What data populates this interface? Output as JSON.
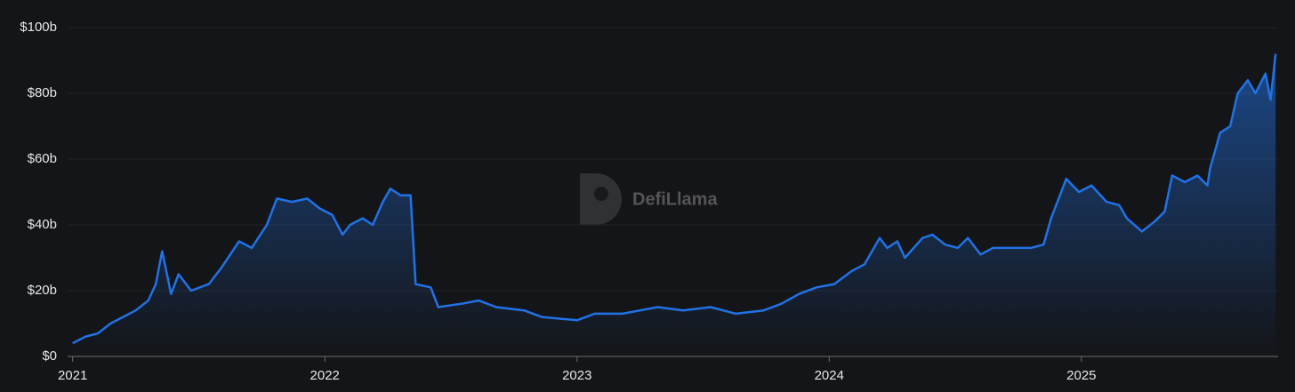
{
  "chart_data": {
    "type": "area",
    "watermark": "DefiLlama",
    "color": "#2172e5",
    "x": [
      2021.0,
      2021.05,
      2021.1,
      2021.15,
      2021.2,
      2021.25,
      2021.3,
      2021.33,
      2021.355,
      2021.39,
      2021.42,
      2021.47,
      2021.54,
      2021.59,
      2021.66,
      2021.71,
      2021.77,
      2021.81,
      2021.87,
      2021.93,
      2021.98,
      2022.03,
      2022.07,
      2022.1,
      2022.15,
      2022.19,
      2022.23,
      2022.26,
      2022.3,
      2022.34,
      2022.36,
      2022.42,
      2022.45,
      2022.54,
      2022.61,
      2022.68,
      2022.79,
      2022.86,
      2023.0,
      2023.07,
      2023.18,
      2023.25,
      2023.32,
      2023.42,
      2023.53,
      2023.63,
      2023.74,
      2023.81,
      2023.88,
      2023.95,
      2024.02,
      2024.09,
      2024.14,
      2024.2,
      2024.23,
      2024.27,
      2024.3,
      2024.37,
      2024.41,
      2024.46,
      2024.51,
      2024.55,
      2024.6,
      2024.65,
      2024.73,
      2024.8,
      2024.85,
      2024.88,
      2024.94,
      2024.99,
      2025.04,
      2025.1,
      2025.15,
      2025.18,
      2025.24,
      2025.29,
      2025.33,
      2025.36,
      2025.41,
      2025.46,
      2025.5,
      2025.51,
      2025.55,
      2025.59,
      2025.62,
      2025.66,
      2025.69,
      2025.73,
      2025.75,
      2025.77
    ],
    "values": [
      4,
      6,
      7,
      10,
      12,
      14,
      17,
      22,
      32,
      19,
      25,
      20,
      22,
      27,
      35,
      33,
      40,
      48,
      47,
      48,
      45,
      43,
      37,
      40,
      42,
      40,
      47,
      51,
      49,
      49,
      22,
      21,
      15,
      16,
      17,
      15,
      14,
      12,
      11,
      13,
      13,
      14,
      15,
      14,
      15,
      13,
      14,
      16,
      19,
      21,
      22,
      26,
      28,
      36,
      33,
      35,
      30,
      36,
      37,
      34,
      33,
      36,
      31,
      33,
      33,
      33,
      34,
      42,
      54,
      50,
      52,
      47,
      46,
      42,
      38,
      41,
      44,
      55,
      53,
      55,
      52,
      57,
      68,
      70,
      80,
      84,
      80,
      86,
      78,
      92
    ],
    "xlim": [
      2020.98,
      2025.78
    ],
    "xticks": [
      2021,
      2022,
      2023,
      2024,
      2025
    ],
    "ylim": [
      0,
      100
    ],
    "yticks": [
      {
        "value": 0,
        "label": "$0"
      },
      {
        "value": 20,
        "label": "$20b"
      },
      {
        "value": 40,
        "label": "$40b"
      },
      {
        "value": 60,
        "label": "$60b"
      },
      {
        "value": 80,
        "label": "$80b"
      },
      {
        "value": 100,
        "label": "$100b"
      }
    ],
    "grid": true
  }
}
